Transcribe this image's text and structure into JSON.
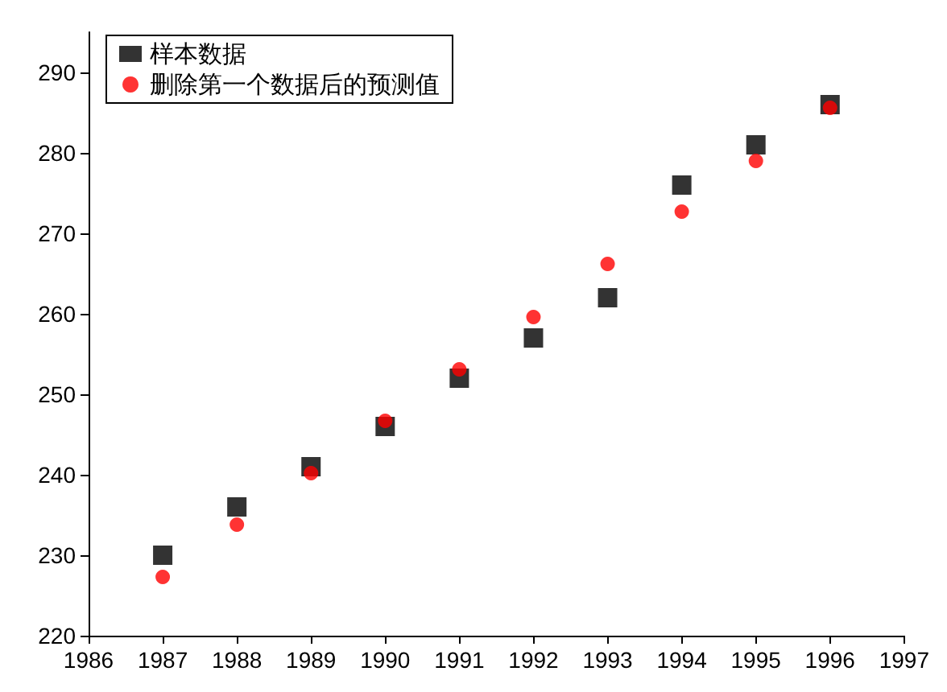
{
  "chart_data": {
    "type": "scatter",
    "x": [
      1987,
      1988,
      1989,
      1990,
      1991,
      1992,
      1993,
      1994,
      1995,
      1996
    ],
    "series": [
      {
        "name": "样本数据",
        "color": "#000000",
        "marker": "square",
        "values": [
          230,
          236,
          241,
          246,
          252,
          257,
          262,
          276,
          281,
          286
        ]
      },
      {
        "name": "删除第一个数据后的预测值",
        "color": "#ff0000",
        "marker": "circle",
        "values": [
          227.3,
          233.8,
          240.2,
          246.7,
          253.1,
          259.6,
          266.2,
          272.7,
          279.0,
          285.6
        ]
      }
    ],
    "xlim": [
      1986,
      1997
    ],
    "xticks": [
      1986,
      1987,
      1988,
      1989,
      1990,
      1991,
      1992,
      1993,
      1994,
      1995,
      1996,
      1997
    ],
    "ylim": [
      220,
      295
    ],
    "yticks": [
      220,
      230,
      240,
      250,
      260,
      270,
      280,
      290
    ],
    "grid": false,
    "legend": "top left"
  }
}
